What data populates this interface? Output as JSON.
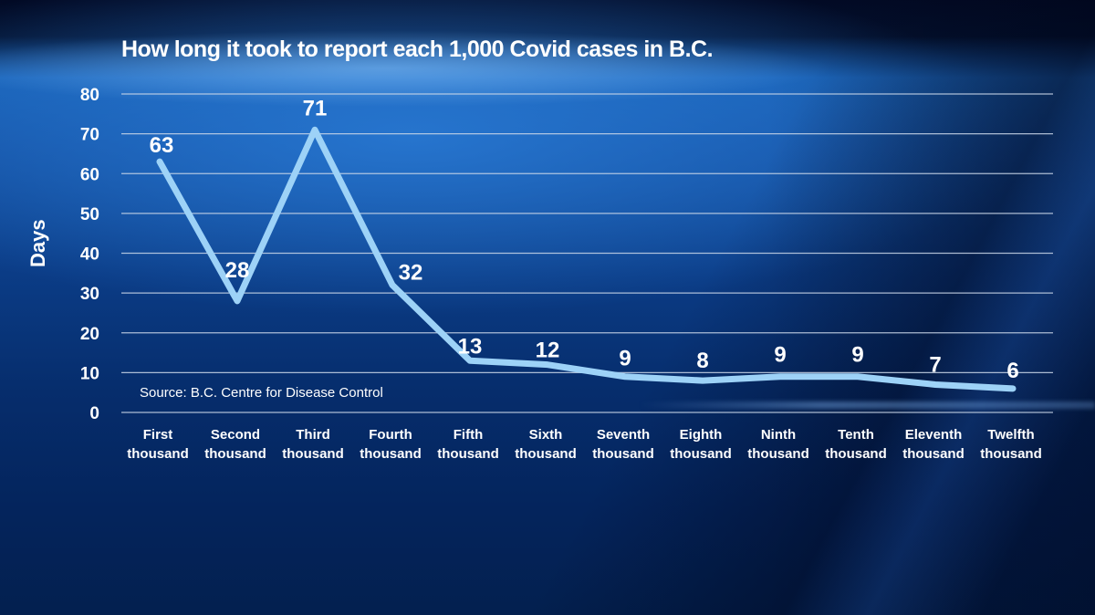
{
  "chart_data": {
    "type": "line",
    "title": "How long it took to report each 1,000 Covid cases in B.C.",
    "xlabel": "",
    "ylabel": "Days",
    "categories": [
      "First thousand",
      "Second thousand",
      "Third thousand",
      "Fourth thousand",
      "Fifth thousand",
      "Sixth thousand",
      "Seventh thousand",
      "Eighth thousand",
      "Ninth thousand",
      "Tenth thousand",
      "Eleventh thousand",
      "Twelfth thousand"
    ],
    "category_lines": [
      [
        "First",
        "thousand"
      ],
      [
        "Second",
        "thousand"
      ],
      [
        "Third",
        "thousand"
      ],
      [
        "Fourth",
        "thousand"
      ],
      [
        "Fifth",
        "thousand"
      ],
      [
        "Sixth",
        "thousand"
      ],
      [
        "Seventh",
        "thousand"
      ],
      [
        "Eighth",
        "thousand"
      ],
      [
        "Ninth",
        "thousand"
      ],
      [
        "Tenth",
        "thousand"
      ],
      [
        "Eleventh",
        "thousand"
      ],
      [
        "Twelfth",
        "thousand"
      ]
    ],
    "series": [
      {
        "name": "Days",
        "values": [
          63,
          28,
          71,
          32,
          13,
          12,
          9,
          8,
          9,
          9,
          7,
          6
        ],
        "color": "#9dd2f7"
      }
    ],
    "ylim": [
      0,
      80
    ],
    "yticks": [
      0,
      10,
      20,
      30,
      40,
      50,
      60,
      70,
      80
    ],
    "grid": true,
    "legend": "none",
    "data_labels": true,
    "source": "Source: B.C. Centre for Disease Control"
  },
  "colors": {
    "line": "#9dd2f7",
    "grid": "#c9d6e8",
    "text": "#ffffff"
  }
}
